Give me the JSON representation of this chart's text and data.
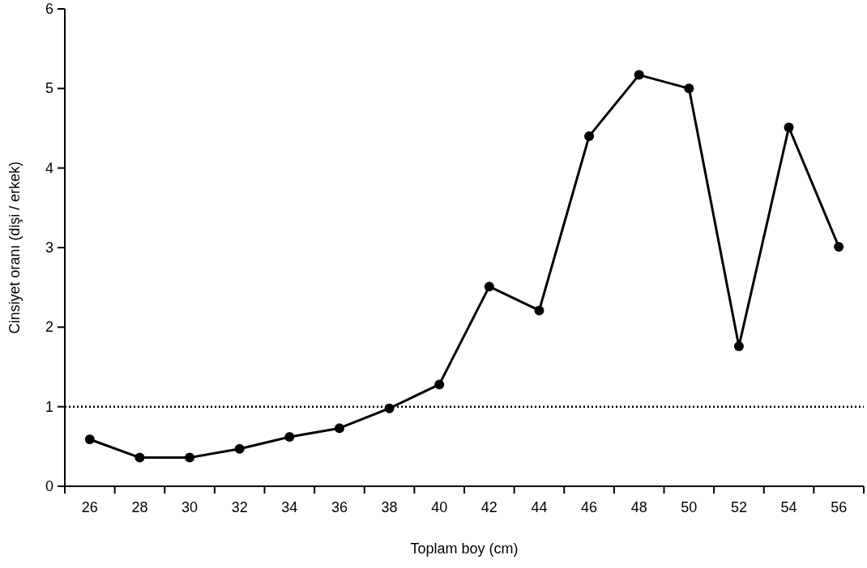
{
  "chart_data": {
    "type": "line",
    "xlabel": "Toplam boy (cm)",
    "ylabel": "Cinsiyet oranı (dişi / erkek)",
    "categories": [
      "26",
      "28",
      "30",
      "32",
      "34",
      "36",
      "38",
      "40",
      "42",
      "44",
      "46",
      "48",
      "50",
      "52",
      "54",
      "56"
    ],
    "series": [
      {
        "color": "#000000",
        "values": [
          0.59,
          0.36,
          0.36,
          0.47,
          0.62,
          0.73,
          0.98,
          1.28,
          2.51,
          2.21,
          4.4,
          5.17,
          5.0,
          1.76,
          4.51,
          3.01
        ]
      }
    ],
    "ylim": [
      0,
      6
    ],
    "yticks": [
      0,
      1,
      2,
      3,
      4,
      5,
      6
    ],
    "marker": "circle",
    "line_style": "solid",
    "grid": false,
    "ref_lines": [
      {
        "axis": "y",
        "value": 1,
        "color": "#000000",
        "line_style": "dotted"
      }
    ]
  }
}
